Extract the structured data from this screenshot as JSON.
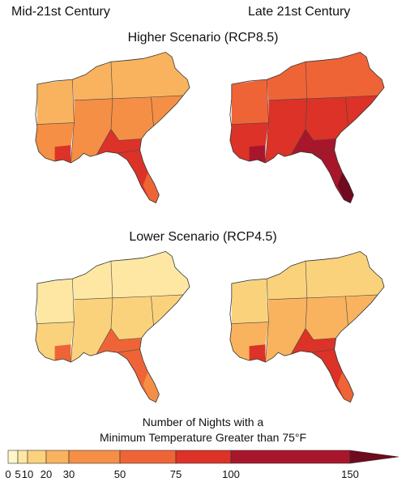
{
  "columns": {
    "left": "Mid-21st Century",
    "right": "Late 21st Century"
  },
  "scenarios": {
    "higher": "Higher Scenario (RCP8.5)",
    "lower": "Lower Scenario (RCP4.5)"
  },
  "legend": {
    "title_line1": "Number of Nights with a",
    "title_line2": "Minimum Temperature Greater than 75°F",
    "breaks": [
      "0",
      "5",
      "10",
      "20",
      "30",
      "50",
      "75",
      "100",
      "150"
    ],
    "colors": [
      "#fff6c9",
      "#fde7a3",
      "#fbd27c",
      "#f9b35e",
      "#f58f45",
      "#ef6436",
      "#dd3227",
      "#a8162b",
      "#6e0b1e"
    ]
  },
  "maps": [
    {
      "id": "mid-high",
      "fill_primary": "#f58f45",
      "fill_secondary": "#f9b35e",
      "fill_hot": "#dd3227",
      "fill_extreme": "#ef6436"
    },
    {
      "id": "late-high",
      "fill_primary": "#dd3227",
      "fill_secondary": "#ef6436",
      "fill_hot": "#a8162b",
      "fill_extreme": "#6e0b1e"
    },
    {
      "id": "mid-low",
      "fill_primary": "#fbd27c",
      "fill_secondary": "#fde7a3",
      "fill_hot": "#ef6436",
      "fill_extreme": "#f58f45"
    },
    {
      "id": "late-low",
      "fill_primary": "#f9b35e",
      "fill_secondary": "#fbd27c",
      "fill_hot": "#dd3227",
      "fill_extreme": "#ef6436"
    }
  ]
}
